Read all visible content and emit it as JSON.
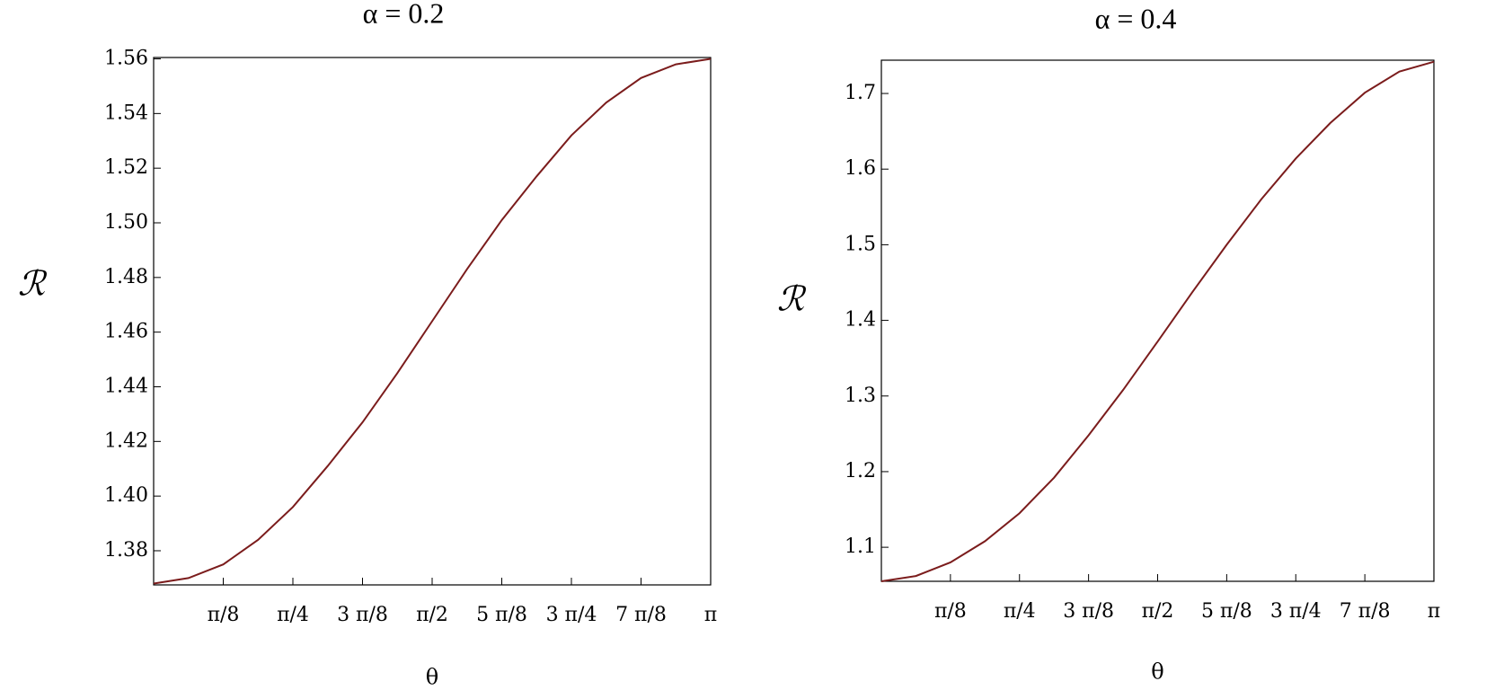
{
  "chart_data": [
    {
      "type": "line",
      "title": "α = 0.2",
      "x_label": "θ",
      "y_label": "ℛ",
      "x": [
        0,
        0.19635,
        0.3927,
        0.58905,
        0.7854,
        0.98175,
        1.1781,
        1.37445,
        1.5708,
        1.76715,
        1.9635,
        2.15984,
        2.35619,
        2.55254,
        2.74889,
        2.94524,
        3.14159
      ],
      "series": [
        {
          "color": "#7b1c1c",
          "values": [
            1.368,
            1.37,
            1.375,
            1.384,
            1.396,
            1.411,
            1.427,
            1.445,
            1.464,
            1.483,
            1.501,
            1.517,
            1.532,
            1.544,
            1.553,
            1.558,
            1.56
          ]
        }
      ],
      "xlim": [
        0,
        3.14159
      ],
      "ylim": [
        1.3675,
        1.5605
      ],
      "xticks": [
        {
          "value": 0.3927,
          "label": "π/8"
        },
        {
          "value": 0.7854,
          "label": "π/4"
        },
        {
          "value": 1.1781,
          "label": "3 π/8"
        },
        {
          "value": 1.5708,
          "label": "π/2"
        },
        {
          "value": 1.9635,
          "label": "5 π/8"
        },
        {
          "value": 2.35619,
          "label": "3 π/4"
        },
        {
          "value": 2.74889,
          "label": "7 π/8"
        },
        {
          "value": 3.14159,
          "label": "π"
        }
      ],
      "yticks": [
        1.38,
        {
          "value": 1.4,
          "label": "1.40"
        },
        1.42,
        1.44,
        1.46,
        1.48,
        {
          "value": 1.5,
          "label": "1.50"
        },
        1.52,
        1.54,
        1.56
      ]
    },
    {
      "type": "line",
      "title": "α = 0.4",
      "x_label": "θ",
      "y_label": "ℛ",
      "x": [
        0,
        0.19635,
        0.3927,
        0.58905,
        0.7854,
        0.98175,
        1.1781,
        1.37445,
        1.5708,
        1.76715,
        1.9635,
        2.15984,
        2.35619,
        2.55254,
        2.74889,
        2.94524,
        3.14159
      ],
      "series": [
        {
          "color": "#7b1c1c",
          "values": [
            1.055,
            1.062,
            1.08,
            1.108,
            1.145,
            1.192,
            1.248,
            1.308,
            1.372,
            1.437,
            1.5,
            1.56,
            1.614,
            1.661,
            1.701,
            1.729,
            1.742
          ]
        }
      ],
      "xlim": [
        0,
        3.14159
      ],
      "ylim": [
        1.055,
        1.744
      ],
      "xticks": [
        {
          "value": 0.3927,
          "label": "π/8"
        },
        {
          "value": 0.7854,
          "label": "π/4"
        },
        {
          "value": 1.1781,
          "label": "3 π/8"
        },
        {
          "value": 1.5708,
          "label": "π/2"
        },
        {
          "value": 1.9635,
          "label": "5 π/8"
        },
        {
          "value": 2.35619,
          "label": "3 π/4"
        },
        {
          "value": 2.74889,
          "label": "7 π/8"
        },
        {
          "value": 3.14159,
          "label": "π"
        }
      ],
      "yticks": [
        1.1,
        1.2,
        1.3,
        1.4,
        1.5,
        1.6,
        1.7
      ]
    }
  ]
}
